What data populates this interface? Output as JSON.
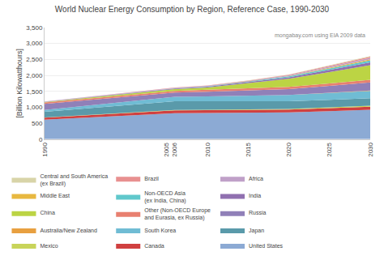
{
  "chart_data": {
    "type": "area",
    "stacked": true,
    "title": "World Nuclear Energy Consumption by Region, Reference Case, 1990-2030",
    "ylabel": "[Billion Kilowatthours]",
    "annotations": [
      "mongabay.com using EIA 2009 data"
    ],
    "x": [
      1990,
      2005,
      2006,
      2010,
      2015,
      2020,
      2025,
      2030
    ],
    "xlim": [
      1990,
      2030
    ],
    "xticks": [
      1990,
      2005,
      2006,
      2010,
      2015,
      2020,
      2025,
      2030
    ],
    "ylim": [
      0,
      3500
    ],
    "yticks": [
      0,
      500,
      {
        "value": 1000,
        "label": "1,000"
      },
      {
        "value": 1500,
        "label": "1,500"
      },
      {
        "value": 2000,
        "label": "2,000"
      },
      {
        "value": 2500,
        "label": "2,500"
      },
      {
        "value": 3000,
        "label": "3,000"
      },
      {
        "value": 3500,
        "label": "3,500"
      }
    ],
    "grid": true,
    "legend": "bottom",
    "series": [
      {
        "name": "United States",
        "color": "#8caad4",
        "values": [
          610,
          810,
          815,
          820,
          825,
          840,
          880,
          920
        ]
      },
      {
        "name": "Canada",
        "color": "#d04040",
        "values": [
          65,
          85,
          87,
          88,
          88,
          90,
          95,
          100
        ]
      },
      {
        "name": "Mexico",
        "color": "#c8d45a",
        "values": [
          8,
          13,
          13,
          15,
          17,
          20,
          25,
          30
        ]
      },
      {
        "name": "Japan",
        "color": "#5a9aaa",
        "values": [
          175,
          270,
          275,
          265,
          255,
          240,
          235,
          235
        ]
      },
      {
        "name": "South Korea",
        "color": "#70bcd4",
        "values": [
          55,
          135,
          140,
          155,
          175,
          195,
          215,
          230
        ]
      },
      {
        "name": "Australia/New Zealand",
        "color": "#e8a040",
        "values": [
          0,
          0,
          0,
          0,
          0,
          0,
          3,
          8
        ]
      },
      {
        "name": "Russia",
        "color": "#9080b8",
        "values": [
          190,
          125,
          130,
          145,
          165,
          185,
          215,
          255
        ]
      },
      {
        "name": "Other (Non-OECD Europe\nand Eurasia, ex Russia)",
        "color": "#e88070",
        "values": [
          45,
          55,
          55,
          60,
          65,
          70,
          78,
          85
        ]
      },
      {
        "name": "China",
        "color": "#bcd444",
        "values": [
          15,
          50,
          55,
          75,
          165,
          255,
          360,
          455
        ]
      },
      {
        "name": "India",
        "color": "#9070b0",
        "values": [
          4,
          18,
          18,
          22,
          30,
          45,
          65,
          88
        ]
      },
      {
        "name": "Non-OECD Asia\n(ex India, China)",
        "color": "#60c8cc",
        "values": [
          4,
          8,
          9,
          12,
          18,
          28,
          48,
          68
        ]
      },
      {
        "name": "Middle East",
        "color": "#e8b840",
        "values": [
          0,
          0,
          0,
          0,
          3,
          8,
          18,
          28
        ]
      },
      {
        "name": "Africa",
        "color": "#c0a0c8",
        "values": [
          10,
          13,
          13,
          14,
          18,
          26,
          38,
          48
        ]
      },
      {
        "name": "Brazil",
        "color": "#e89090",
        "values": [
          2,
          8,
          8,
          10,
          13,
          18,
          28,
          38
        ]
      },
      {
        "name": "Central and South America\n(ex Brazil)",
        "color": "#d8d4a8",
        "values": [
          0,
          0,
          0,
          0,
          3,
          8,
          13,
          18
        ]
      }
    ]
  }
}
